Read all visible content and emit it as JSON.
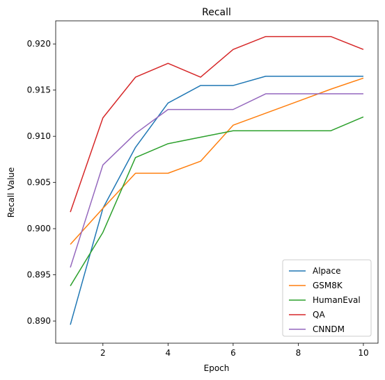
{
  "chart_data": {
    "type": "line",
    "title": "Recall",
    "xlabel": "Epoch",
    "ylabel": "Recall Value",
    "x": [
      1,
      2,
      3,
      4,
      5,
      6,
      7,
      8,
      9,
      10
    ],
    "xlim": [
      0.55,
      10.45
    ],
    "ylim": [
      0.8876,
      0.9225
    ],
    "xticks": [
      2,
      4,
      6,
      8,
      10
    ],
    "xtick_labels": [
      "2",
      "4",
      "6",
      "8",
      "10"
    ],
    "yticks": [
      0.89,
      0.895,
      0.9,
      0.905,
      0.91,
      0.915,
      0.92
    ],
    "ytick_labels": [
      "0.890",
      "0.895",
      "0.900",
      "0.905",
      "0.910",
      "0.915",
      "0.920"
    ],
    "grid": false,
    "legend_position": "lower-right",
    "series": [
      {
        "name": "Alpace",
        "color": "#1f77b4",
        "values": [
          0.8896,
          0.9022,
          0.9088,
          0.9136,
          0.9155,
          0.9155,
          0.9165,
          0.9165,
          0.9165,
          0.9165
        ]
      },
      {
        "name": "GSM8K",
        "color": "#ff7f0e",
        "values": [
          0.8983,
          0.9022,
          0.906,
          0.906,
          0.9073,
          0.9112,
          0.9125,
          0.9138,
          0.9151,
          0.9163
        ]
      },
      {
        "name": "HumanEval",
        "color": "#2ca02c",
        "values": [
          0.8938,
          0.8996,
          0.9077,
          0.9092,
          0.9099,
          0.9106,
          0.9106,
          0.9106,
          0.9106,
          0.9121
        ]
      },
      {
        "name": "QA",
        "color": "#d62728",
        "values": [
          0.9018,
          0.912,
          0.9164,
          0.9179,
          0.9164,
          0.9194,
          0.9208,
          0.9208,
          0.9208,
          0.9194
        ]
      },
      {
        "name": "CNNDM",
        "color": "#9467bd",
        "values": [
          0.8958,
          0.9069,
          0.9103,
          0.9129,
          0.9129,
          0.9129,
          0.9146,
          0.9146,
          0.9146,
          0.9146
        ]
      }
    ]
  }
}
